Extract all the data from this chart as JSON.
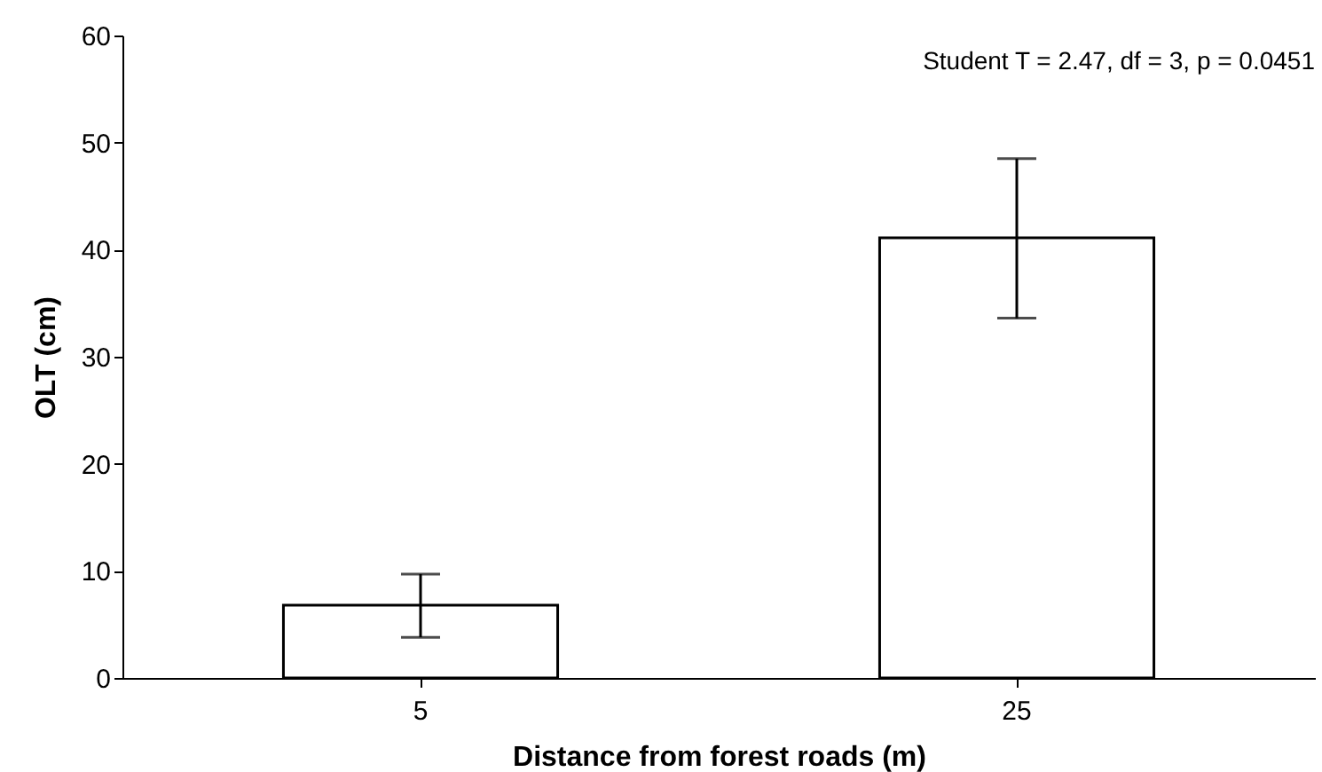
{
  "chart_data": {
    "type": "bar",
    "xlabel": "Distance from forest roads (m)",
    "ylabel": "OLT (cm)",
    "categories": [
      "5",
      "25"
    ],
    "values": [
      6.8,
      41.1
    ],
    "errors": [
      [
        3.8,
        9.7
      ],
      [
        33.6,
        48.5
      ]
    ],
    "color": "#ffffff",
    "ylim": [
      0,
      60
    ],
    "yticks": [
      0,
      10,
      20,
      30,
      40,
      50,
      60
    ],
    "annotations": [
      "Student T = 2.47, df = 3, p = 0.0451"
    ]
  }
}
